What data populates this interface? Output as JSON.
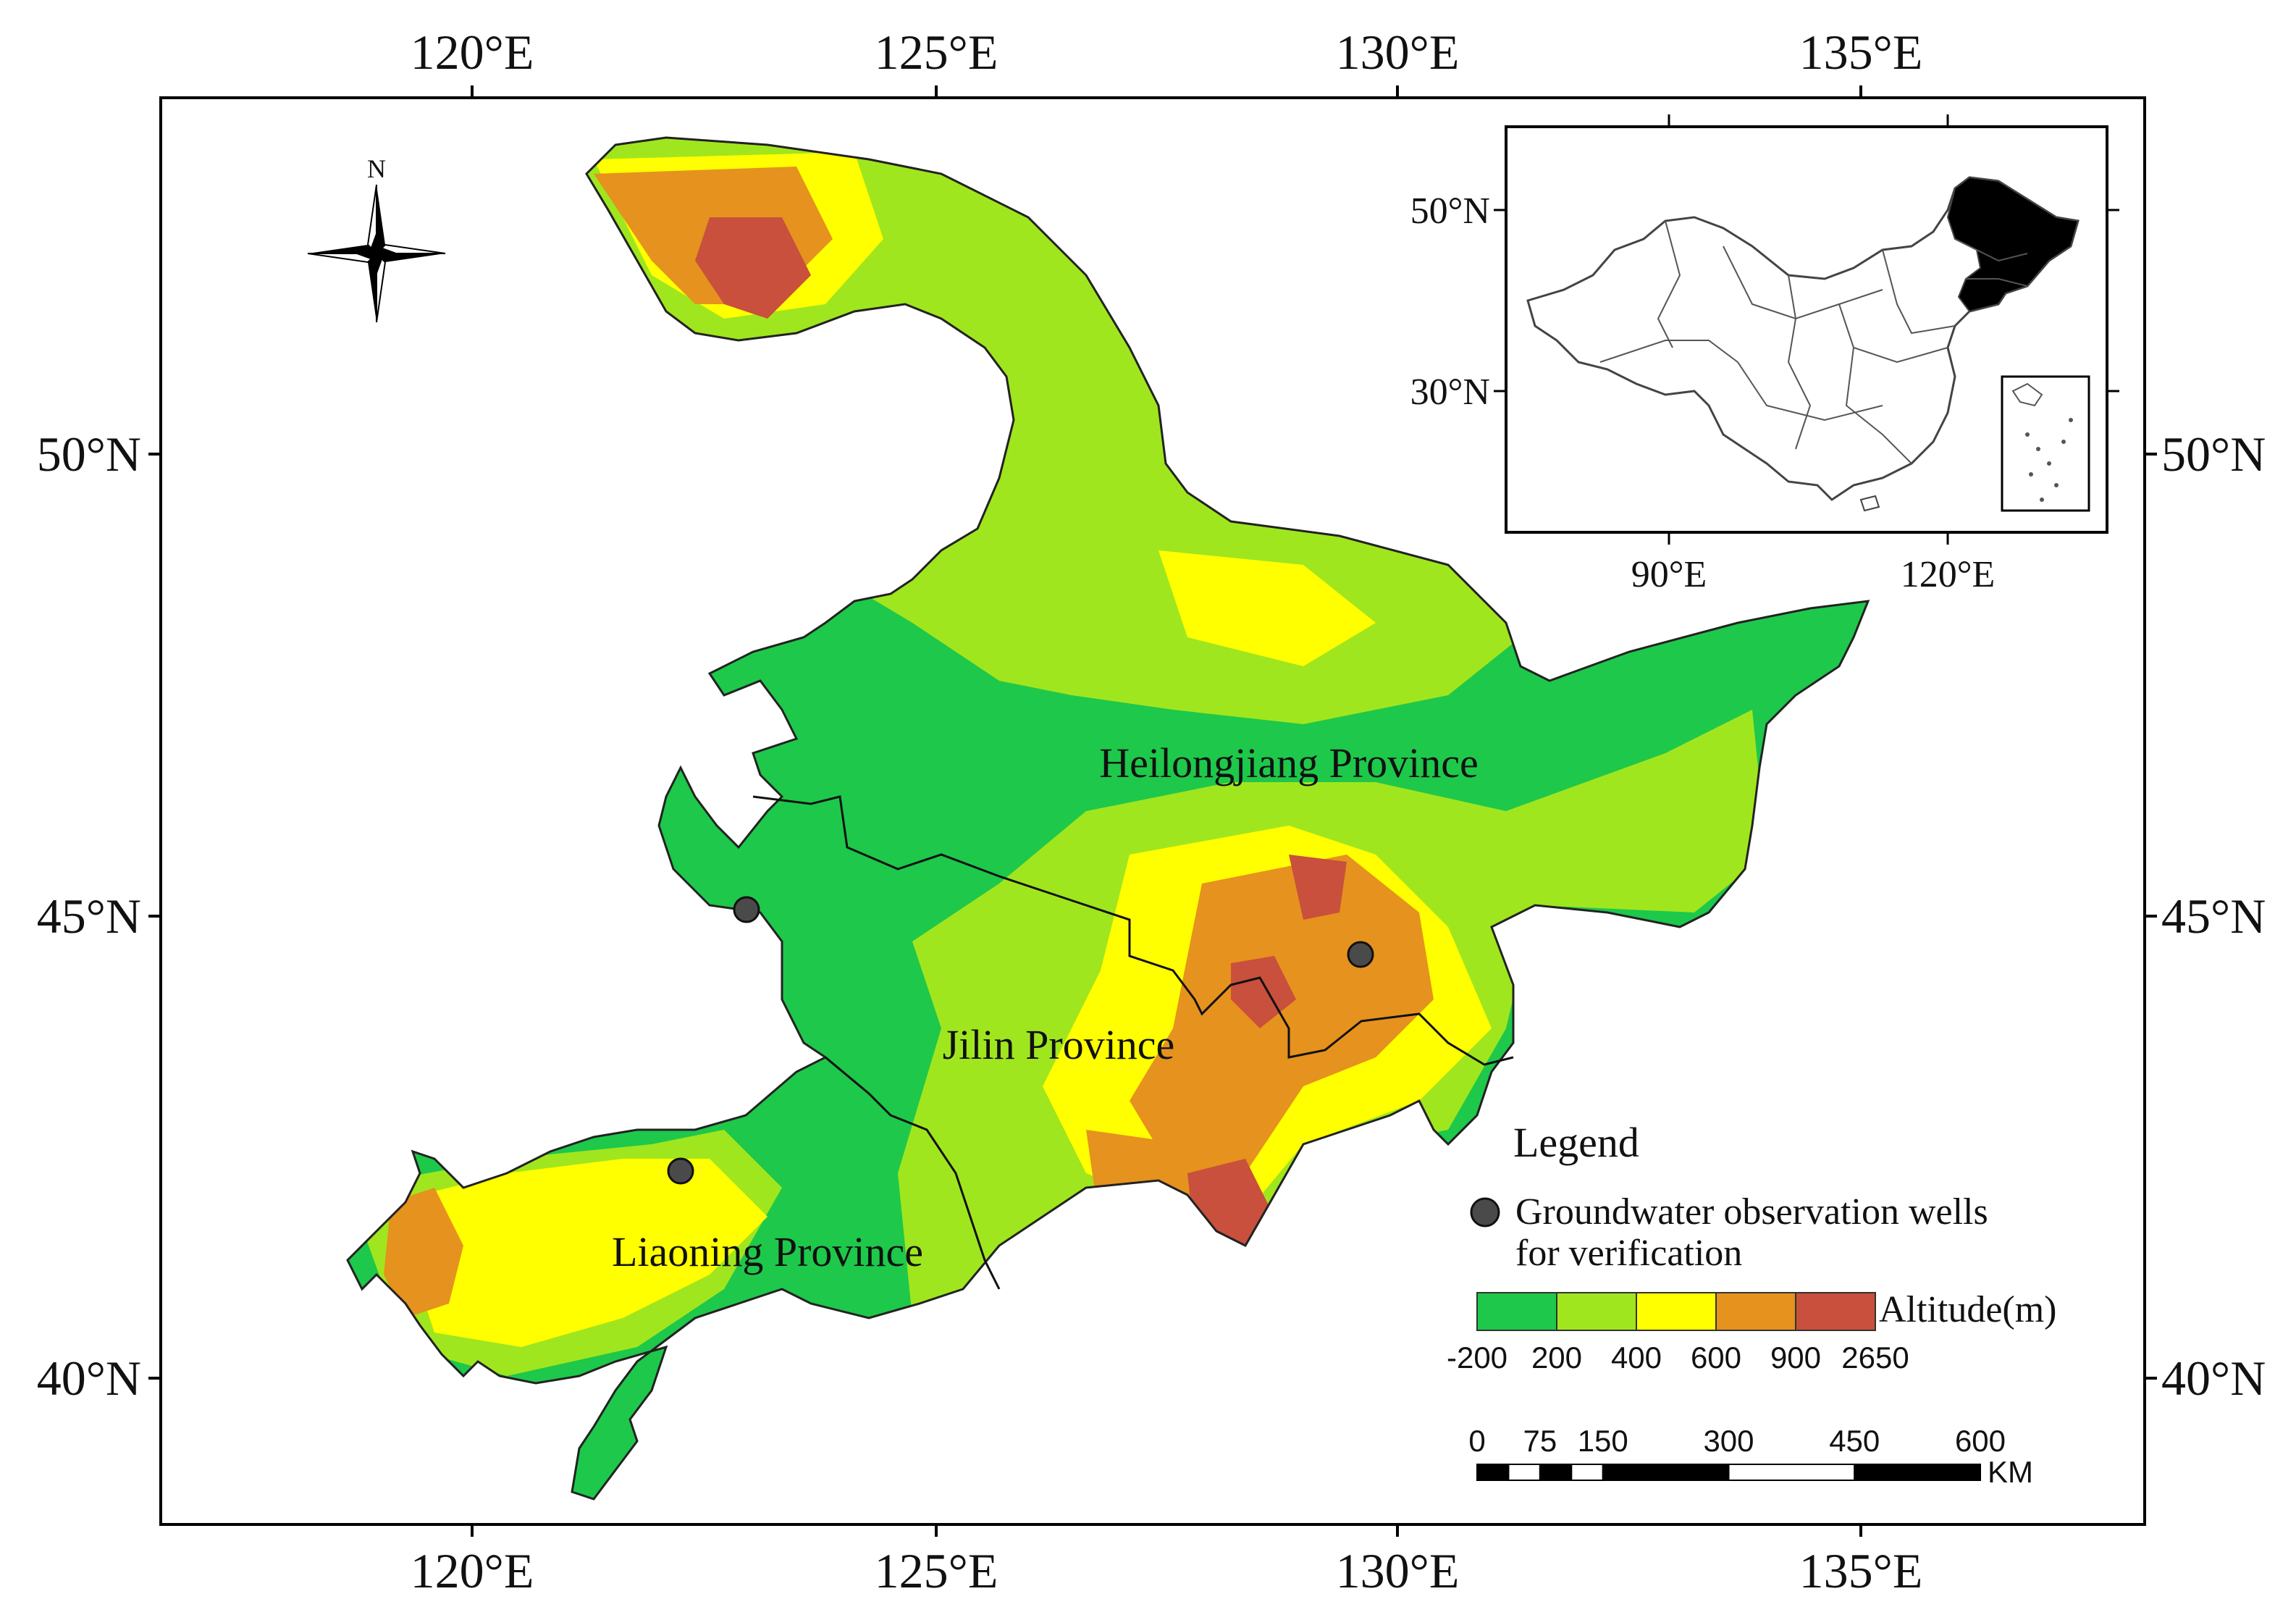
{
  "axes": {
    "lon_ticks": [
      "120°E",
      "125°E",
      "130°E",
      "135°E"
    ],
    "lat_ticks": [
      "50°N",
      "45°N",
      "40°N"
    ]
  },
  "north_arrow": {
    "label": "N",
    "icon": "compass-rose-icon"
  },
  "provinces": [
    {
      "name": "Heilongjiang Province"
    },
    {
      "name": "Jilin Province"
    },
    {
      "name": "Liaoning Province"
    }
  ],
  "wells": [
    {
      "lon": 122.9,
      "lat": 45.1
    },
    {
      "lon": 129.6,
      "lat": 44.6
    },
    {
      "lon": 122.2,
      "lat": 42.3
    }
  ],
  "inset": {
    "lat_ticks": [
      "50°N",
      "30°N"
    ],
    "lon_ticks": [
      "90°E",
      "120°E"
    ],
    "highlight_color": "#ffffc8"
  },
  "legend": {
    "title": "Legend",
    "wells_label_line1": "Groundwater observation wells",
    "wells_label_line2": "for verification",
    "well_color": "#4a4a4a",
    "altitude_label": "Altitude(m)",
    "altitude_classes": [
      {
        "from": -200,
        "to": 200,
        "color": "#1ec84a"
      },
      {
        "from": 200,
        "to": 400,
        "color": "#a0e61e"
      },
      {
        "from": 400,
        "to": 600,
        "color": "#ffff00"
      },
      {
        "from": 600,
        "to": 900,
        "color": "#e6921e"
      },
      {
        "from": 900,
        "to": 2650,
        "color": "#c8503c"
      }
    ],
    "altitude_breaks": [
      "-200",
      "200",
      "400",
      "600",
      "900",
      "2650"
    ]
  },
  "scale_bar": {
    "labels": [
      "0",
      "75",
      "150",
      "300",
      "450",
      "600"
    ],
    "unit": "KM"
  }
}
